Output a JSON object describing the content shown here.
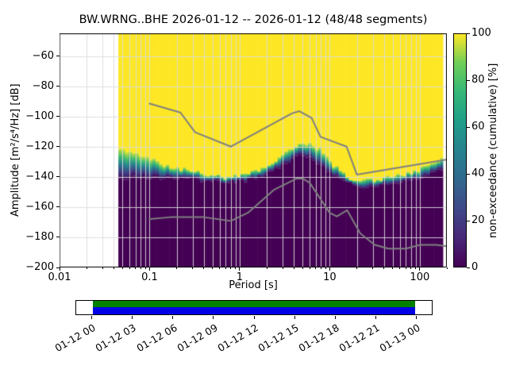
{
  "title": "BW.WRNG..BHE   2026-01-12 -- 2026-01-12  (48/48 segments)",
  "axes": {
    "xlabel": "Period [s]",
    "ylabel": "Amplitude [m²/s⁴/Hz] [dB]",
    "x_ticks": [
      {
        "label": "0.01",
        "value": 0.01
      },
      {
        "label": "0.1",
        "value": 0.1
      },
      {
        "label": "1",
        "value": 1
      },
      {
        "label": "10",
        "value": 10
      },
      {
        "label": "100",
        "value": 100
      }
    ],
    "y_ticks": [
      {
        "label": "−60",
        "value": -60
      },
      {
        "label": "−80",
        "value": -80
      },
      {
        "label": "−100",
        "value": -100
      },
      {
        "label": "−120",
        "value": -120
      },
      {
        "label": "−140",
        "value": -140
      },
      {
        "label": "−160",
        "value": -160
      },
      {
        "label": "−180",
        "value": -180
      },
      {
        "label": "−200",
        "value": -200
      }
    ]
  },
  "colorbar": {
    "label": "non-exceedance (cumulative) [%]",
    "ticks": [
      {
        "label": "0",
        "value": 0
      },
      {
        "label": "20",
        "value": 20
      },
      {
        "label": "40",
        "value": 40
      },
      {
        "label": "60",
        "value": 60
      },
      {
        "label": "80",
        "value": 80
      },
      {
        "label": "100",
        "value": 100
      }
    ]
  },
  "chart_data": {
    "type": "heatmap",
    "subtype": "ppsd-cumulative-spectral-distribution",
    "title": "BW.WRNG..BHE   2026-01-12 -- 2026-01-12  (48/48 segments)",
    "xlabel": "Period [s]",
    "ylabel": "Amplitude [m²/s⁴/Hz] [dB]",
    "x_scale": "log",
    "xlim": [
      0.01,
      200
    ],
    "ylim": [
      -200,
      -45
    ],
    "grid": true,
    "colormap": "viridis",
    "value_label": "non-exceedance (cumulative) [%]",
    "value_range": [
      0,
      100
    ],
    "data_period_range": [
      0.045,
      180
    ],
    "ppsd_distribution": {
      "note": "Above band_top_db the cumulative value is 100% (yellow); below band_bottom_db it is 0% (dark purple); a narrow viridis transition band lies between.",
      "periods": [
        0.045,
        0.06,
        0.08,
        0.1,
        0.15,
        0.2,
        0.3,
        0.5,
        0.7,
        1,
        1.5,
        2,
        3,
        4,
        5,
        6,
        8,
        10,
        15,
        20,
        30,
        50,
        80,
        120,
        180
      ],
      "band_top_db": [
        -122,
        -124,
        -126,
        -128,
        -132,
        -134,
        -136,
        -139,
        -140,
        -139,
        -136,
        -132,
        -126,
        -121,
        -118,
        -118,
        -122,
        -130,
        -139,
        -143,
        -142,
        -140,
        -137,
        -133,
        -128
      ],
      "band_bottom_db": [
        -142,
        -141,
        -140,
        -140,
        -141,
        -141,
        -142,
        -143,
        -144,
        -143,
        -141,
        -138,
        -133,
        -128,
        -126,
        -127,
        -132,
        -138,
        -144,
        -147,
        -146,
        -144,
        -142,
        -139,
        -135
      ]
    },
    "noise_models": {
      "high": {
        "name": "Peterson NHNM (gray line, upper)",
        "periods": [
          0.1,
          0.22,
          0.32,
          0.8,
          3.8,
          4.6,
          6.3,
          7.9,
          15.4,
          20,
          200
        ],
        "db": [
          -91.5,
          -97.4,
          -110.5,
          -120,
          -98,
          -96.5,
          -101,
          -113.5,
          -120,
          -138.5,
          -128.5
        ]
      },
      "low": {
        "name": "Peterson NLNM (gray line, lower)",
        "periods": [
          0.1,
          0.17,
          0.4,
          0.8,
          1.24,
          2.4,
          4.3,
          5,
          6,
          10,
          12,
          15.6,
          21.9,
          31.6,
          45,
          70,
          101,
          154,
          200
        ],
        "db": [
          -168,
          -166.7,
          -166.7,
          -169.2,
          -163.7,
          -148.6,
          -141.1,
          -141.1,
          -144,
          -163.8,
          -166.2,
          -162.1,
          -177.5,
          -185,
          -187.5,
          -187.5,
          -185,
          -185,
          -185.9
        ]
      }
    }
  },
  "timeline": {
    "tick_labels": [
      "01-12 00",
      "01-12 03",
      "01-12 06",
      "01-12 09",
      "01-12 12",
      "01-12 15",
      "01-12 18",
      "01-12 21",
      "01-13 00"
    ],
    "coverage": {
      "start_frac": 0.047,
      "end_frac": 0.953
    }
  },
  "colors": {
    "viridis_stops": [
      "#440154",
      "#482878",
      "#3e4989",
      "#31688e",
      "#26828e",
      "#1f9e89",
      "#35b779",
      "#6ece58",
      "#fde725"
    ],
    "noise_model_line": "#7f7f7f",
    "grid_line": "#dcdcdc",
    "frame": "#000000",
    "background": "#ffffff",
    "timeline_green": "#008000",
    "timeline_blue": "#0000e6"
  }
}
